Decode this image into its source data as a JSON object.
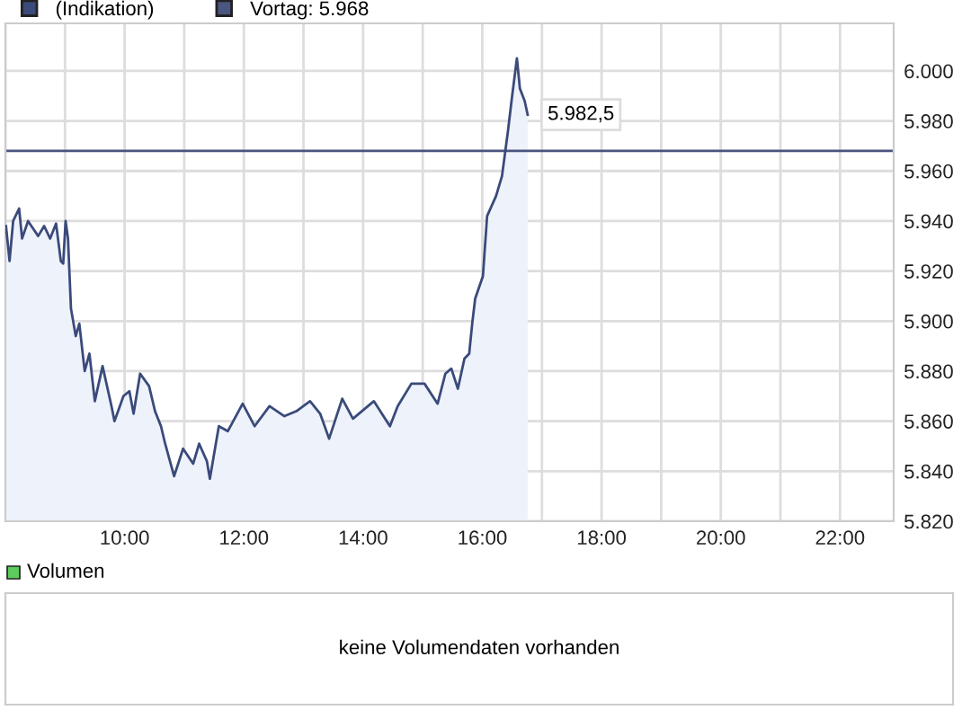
{
  "chart_data": [
    {
      "type": "area",
      "legend": "top left",
      "grid": true,
      "marker": "none",
      "line_style": "solid",
      "x": [
        8.01,
        8.07,
        8.13,
        8.23,
        8.28,
        8.38,
        8.55,
        8.65,
        8.75,
        8.85,
        8.93,
        8.97,
        9.01,
        9.05,
        9.1,
        9.18,
        9.24,
        9.33,
        9.41,
        9.5,
        9.63,
        9.78,
        9.83,
        9.98,
        10.08,
        10.15,
        10.26,
        10.41,
        10.51,
        10.61,
        10.68,
        10.83,
        10.98,
        11.15,
        11.25,
        11.38,
        11.43,
        11.58,
        11.73,
        11.98,
        12.18,
        12.43,
        12.68,
        12.88,
        13.11,
        13.28,
        13.43,
        13.65,
        13.83,
        14.18,
        14.45,
        14.58,
        14.81,
        15.03,
        15.25,
        15.38,
        15.48,
        15.59,
        15.7,
        15.78,
        15.83,
        15.88,
        16.01,
        16.08,
        16.23,
        16.33,
        16.43,
        16.5,
        16.58,
        16.63,
        16.71,
        16.76
      ],
      "series": [
        {
          "name": "(Indikation)",
          "color": "#3a4a7a",
          "values": [
            5938,
            5924,
            5940,
            5945,
            5933,
            5940,
            5934,
            5938,
            5933,
            5939,
            5924,
            5923,
            5940,
            5933,
            5905,
            5894,
            5899,
            5880,
            5887,
            5868,
            5882,
            5866,
            5860,
            5870,
            5872,
            5863,
            5879,
            5874,
            5864,
            5858,
            5851,
            5838,
            5849,
            5843,
            5851,
            5844,
            5837,
            5858,
            5856,
            5867,
            5858,
            5866,
            5862,
            5864,
            5868,
            5863,
            5853,
            5869,
            5861,
            5868,
            5858,
            5866,
            5875,
            5875,
            5867,
            5879,
            5881,
            5873,
            5885,
            5887,
            5899,
            5909,
            5918,
            5942,
            5950,
            5958,
            5976,
            5990,
            6005,
            5993,
            5988,
            5982.5
          ]
        }
      ],
      "ref_lines": [
        {
          "axis": "y",
          "value": 5968,
          "label": "Vortag: 5.968",
          "color": "#4a5580"
        }
      ],
      "annotations": [
        {
          "text": "5.982,5",
          "x": 16.76,
          "y": 5982.5
        }
      ],
      "xlim": [
        8,
        22.9
      ],
      "ylim": [
        5820,
        6019
      ],
      "xticks": [
        {
          "value": 8,
          "label": null
        },
        {
          "value": 9,
          "label": null
        },
        {
          "value": 10,
          "label": "10:00"
        },
        {
          "value": 11,
          "label": null
        },
        {
          "value": 12,
          "label": "12:00"
        },
        {
          "value": 13,
          "label": null
        },
        {
          "value": 14,
          "label": "14:00"
        },
        {
          "value": 15,
          "label": null
        },
        {
          "value": 16,
          "label": "16:00"
        },
        {
          "value": 17,
          "label": null
        },
        {
          "value": 18,
          "label": "18:00"
        },
        {
          "value": 19,
          "label": null
        },
        {
          "value": 20,
          "label": "20:00"
        },
        {
          "value": 21,
          "label": null
        },
        {
          "value": 22,
          "label": "22:00"
        }
      ],
      "yticks": [
        {
          "value": 5820,
          "label": "5.820"
        },
        {
          "value": 5840,
          "label": "5.840"
        },
        {
          "value": 5860,
          "label": "5.860"
        },
        {
          "value": 5880,
          "label": "5.880"
        },
        {
          "value": 5900,
          "label": "5.900"
        },
        {
          "value": 5920,
          "label": "5.920"
        },
        {
          "value": 5940,
          "label": "5.940"
        },
        {
          "value": 5960,
          "label": "5.960"
        },
        {
          "value": 5980,
          "label": "5.980"
        },
        {
          "value": 6000,
          "label": "6.000"
        }
      ]
    },
    {
      "type": "other",
      "title": "Volumen",
      "annotations": [
        "keine Volumendaten vorhanden"
      ]
    }
  ]
}
